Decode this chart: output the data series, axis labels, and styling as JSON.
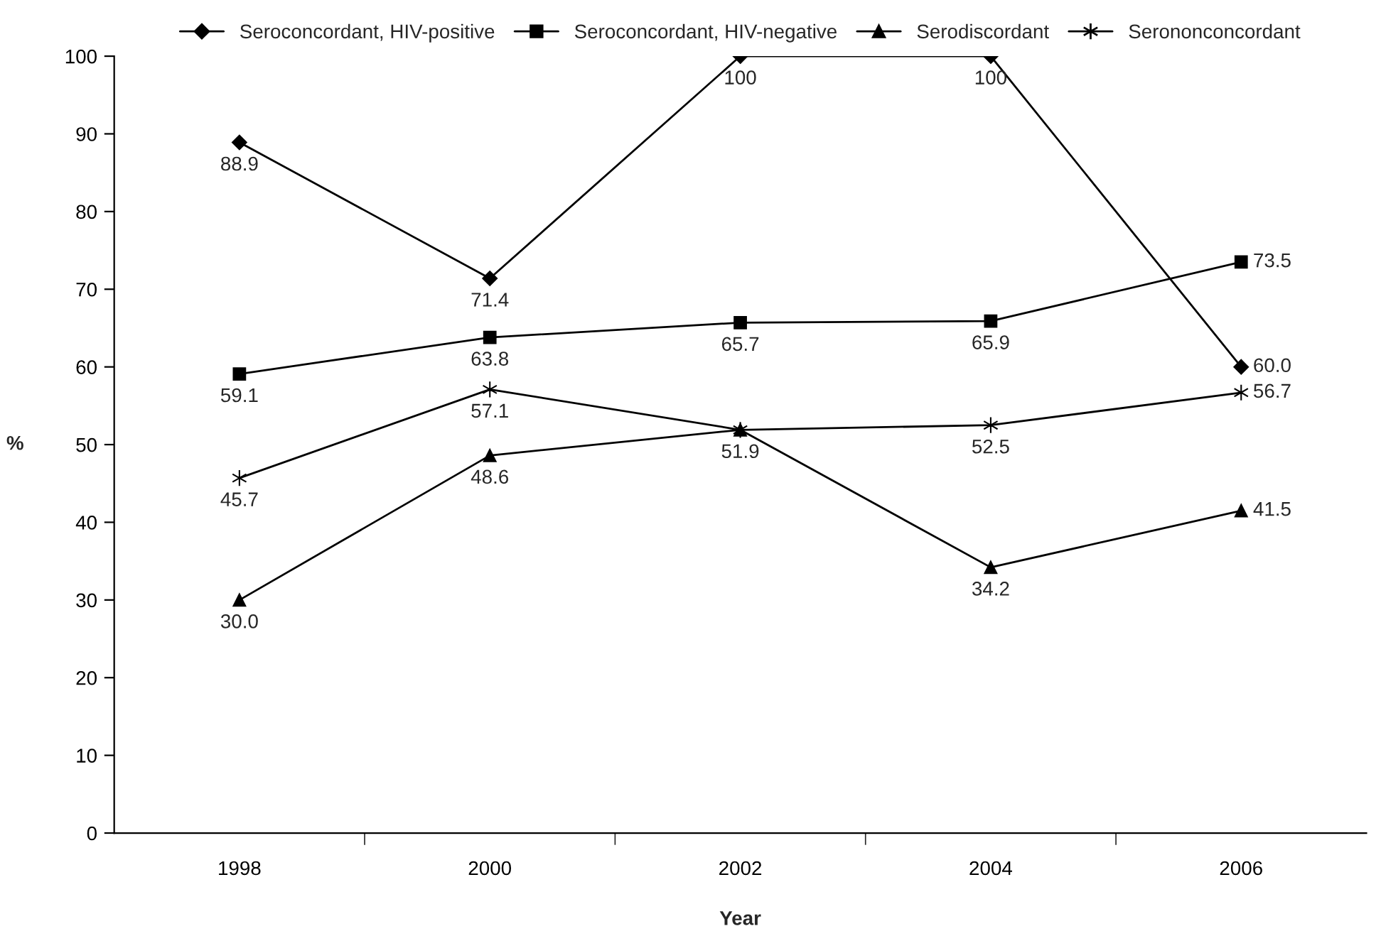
{
  "chart_data": {
    "type": "line",
    "xlabel": "Year",
    "ylabel": "%",
    "categories": [
      "1998",
      "2000",
      "2002",
      "2004",
      "2006"
    ],
    "ylim": [
      0,
      100
    ],
    "yticks": [
      0,
      10,
      20,
      30,
      40,
      50,
      60,
      70,
      80,
      90,
      100
    ],
    "grid": false,
    "legend": "top",
    "line_style": "solid",
    "series": [
      {
        "name": "Seroconcordant, HIV-positive",
        "color": "#000000",
        "marker": "diamond",
        "values": [
          88.9,
          71.4,
          100,
          100,
          60.0
        ],
        "value_labels": [
          "88.9",
          "71.4",
          "100",
          "100",
          "60.0"
        ]
      },
      {
        "name": "Seroconcordant, HIV-negative",
        "color": "#000000",
        "marker": "square",
        "values": [
          59.1,
          63.8,
          65.7,
          65.9,
          73.5
        ],
        "value_labels": [
          "59.1",
          "63.8",
          "65.7",
          "65.9",
          "73.5"
        ]
      },
      {
        "name": "Serodiscordant",
        "color": "#000000",
        "marker": "triangle",
        "values": [
          30.0,
          48.6,
          51.9,
          34.2,
          41.5
        ],
        "value_labels": [
          "30.0",
          "48.6",
          "51.9",
          "34.2",
          "41.5"
        ]
      },
      {
        "name": "Serononconcordant",
        "color": "#000000",
        "marker": "cross",
        "values": [
          45.7,
          57.1,
          51.9,
          52.5,
          56.7
        ],
        "value_labels": [
          "45.7",
          "57.1",
          null,
          "52.5",
          "56.7"
        ]
      }
    ]
  }
}
